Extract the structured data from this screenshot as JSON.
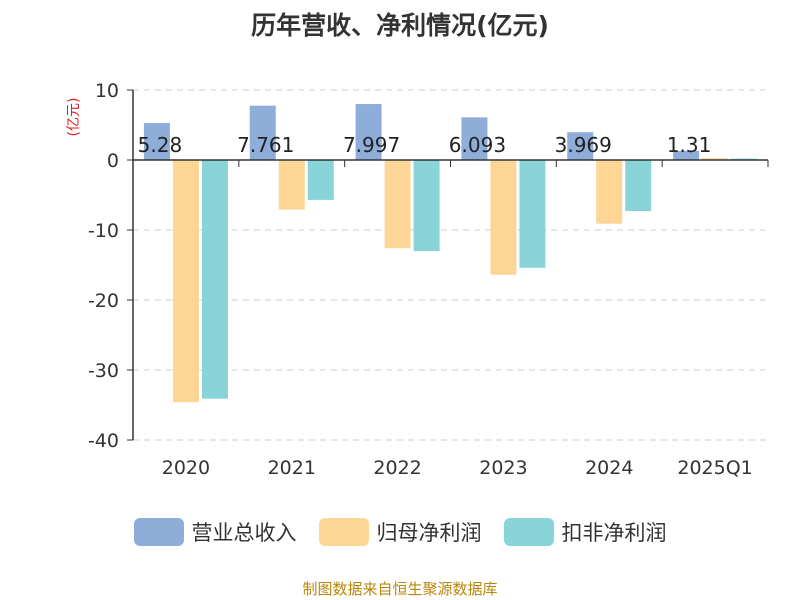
{
  "chart_data": {
    "type": "bar",
    "title": "历年营收、净利情况(亿元)",
    "ylabel": "(亿元)",
    "ylim": [
      -40,
      10
    ],
    "yticks": [
      10,
      0,
      -10,
      -20,
      -30,
      -40
    ],
    "grid": true,
    "legend_position": "bottom",
    "categories": [
      "2020",
      "2021",
      "2022",
      "2023",
      "2024",
      "2025Q1"
    ],
    "series": [
      {
        "name": "营业总收入",
        "color": "#8eadd9",
        "values": [
          5.28,
          7.761,
          7.997,
          6.093,
          3.969,
          1.31
        ],
        "data_labels": [
          "5.28",
          "7.761",
          "7.997",
          "6.093",
          "3.969",
          "1.31"
        ]
      },
      {
        "name": "归母净利润",
        "color": "#fdd696",
        "values": [
          -34.6,
          -7.1,
          -12.6,
          -16.4,
          -9.1,
          0.25
        ]
      },
      {
        "name": "扣非净利润",
        "color": "#88d4d8",
        "values": [
          -34.1,
          -5.7,
          -13.0,
          -15.4,
          -7.3,
          0.2
        ]
      }
    ]
  },
  "source_note": "制图数据来自恒生聚源数据库"
}
